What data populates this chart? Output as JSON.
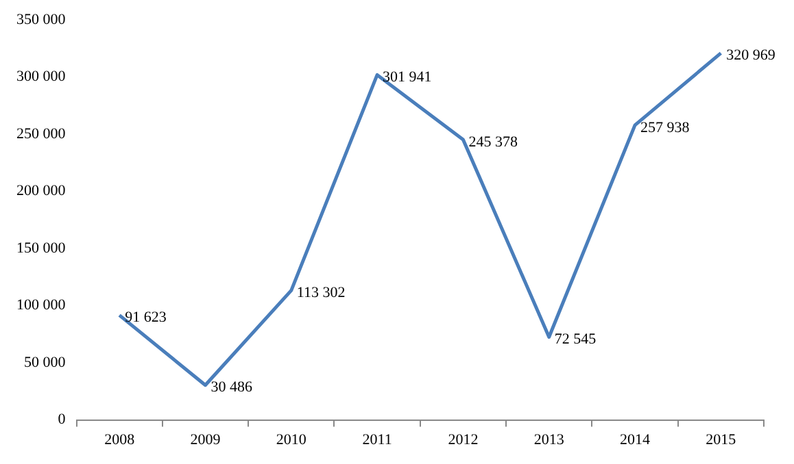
{
  "chart_data": {
    "type": "line",
    "categories": [
      "2008",
      "2009",
      "2010",
      "2011",
      "2012",
      "2013",
      "2014",
      "2015"
    ],
    "series": [
      {
        "color": "#4a7ebb",
        "values": [
          91623,
          30486,
          113302,
          301941,
          245378,
          72545,
          257938,
          320969
        ],
        "value_labels": [
          "91 623",
          "30 486",
          "113 302",
          "301 941",
          "245 378",
          "72 545",
          "257 938",
          "320 969"
        ]
      }
    ],
    "ylim": [
      0,
      350000
    ],
    "yticks": [
      {
        "value": 0,
        "label": "0"
      },
      {
        "value": 50000,
        "label": "50 000"
      },
      {
        "value": 100000,
        "label": "100 000"
      },
      {
        "value": 150000,
        "label": "150 000"
      },
      {
        "value": 200000,
        "label": "200 000"
      },
      {
        "value": 250000,
        "label": "250 000"
      },
      {
        "value": 300000,
        "label": "300 000"
      },
      {
        "value": 350000,
        "label": "350 000"
      }
    ],
    "grid": false,
    "legend": false,
    "marker": "none",
    "line_style": "solid"
  }
}
